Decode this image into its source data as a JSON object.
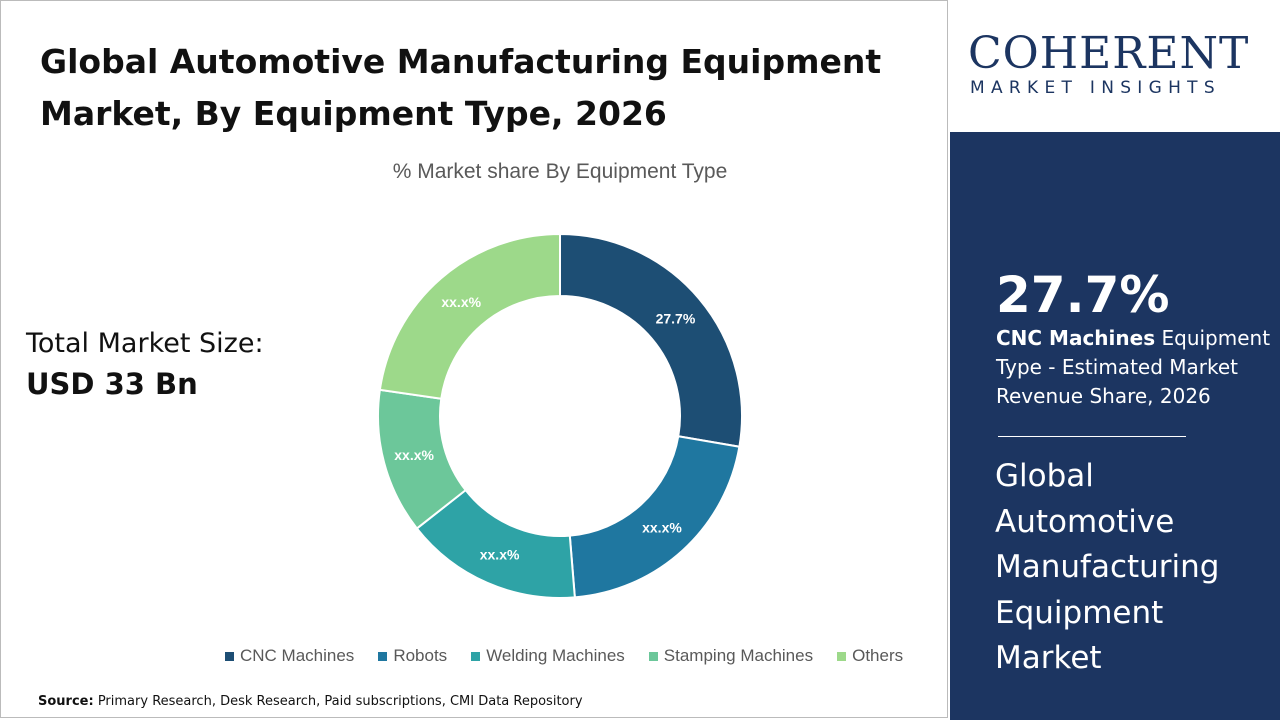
{
  "header": {
    "title": "Global Automotive Manufacturing Equipment Market, By Equipment Type, 2026"
  },
  "total": {
    "label": "Total Market Size:",
    "value": "USD 33 Bn"
  },
  "logo": {
    "name": "COHERENT",
    "tagline": "MARKET INSIGHTS"
  },
  "highlight": {
    "value": "27.7%",
    "segment": "CNC Machines",
    "text": " Equipment Type - Estimated Market Revenue Share, 2026",
    "market": "Global Automotive Manufacturing Equipment Market"
  },
  "source": {
    "label": "Source:",
    "text": " Primary Research, Desk Research, Paid subscriptions, CMI Data Repository"
  },
  "colors": {
    "panel": "#1c3561"
  },
  "chart_data": {
    "type": "donut",
    "title": "% Market share By Equipment Type",
    "legend_position": "bottom",
    "categories": [
      "CNC Machines",
      "Robots",
      "Welding Machines",
      "Stamping Machines",
      "Others"
    ],
    "values": [
      27.7,
      21.0,
      15.7,
      12.9,
      22.7
    ],
    "labels": [
      "27.7%",
      "xx.x%",
      "xx.x%",
      "xx.x%",
      "xx.x%"
    ],
    "colors": [
      "#1d4e74",
      "#1f77a0",
      "#2ea3a6",
      "#6cc79a",
      "#9dd98a"
    ]
  }
}
